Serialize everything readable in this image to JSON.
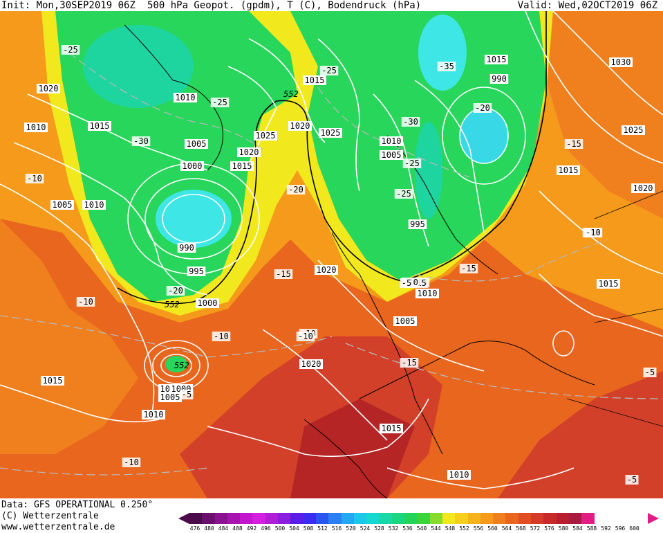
{
  "header": {
    "init": "Init: Mon,30SEP2019 06Z",
    "title": "500 hPa Geopot. (gpdm), T (C), Bodendruck (hPa)",
    "valid": "Valid: Wed,02OCT2019 06Z"
  },
  "footer": {
    "source": "Data: GFS OPERATIONAL 0.250°",
    "copyright": "(C) Wetterzentrale",
    "url": "www.wetterzentrale.de"
  },
  "colors": {
    "green": "#27d65a",
    "light_green": "#6ee06a",
    "cyan": "#3fe6e6",
    "teal": "#1ed5a0",
    "yellow": "#f2e81e",
    "orange": "#f59a1a",
    "dark_orange": "#e8661e",
    "red": "#d3402a",
    "dark_red": "#b52525"
  },
  "scale": {
    "ticks": [
      "476",
      "480",
      "484",
      "488",
      "492",
      "496",
      "500",
      "504",
      "508",
      "512",
      "516",
      "520",
      "524",
      "528",
      "532",
      "536",
      "540",
      "544",
      "548",
      "552",
      "556",
      "560",
      "564",
      "568",
      "572",
      "576",
      "580",
      "584",
      "588",
      "592",
      "596",
      "600"
    ],
    "colors": [
      "#4b0a4a",
      "#6a0f6e",
      "#8a128f",
      "#a814b0",
      "#c316cf",
      "#d41ee0",
      "#b01ed8",
      "#8a1ee0",
      "#5a1ee8",
      "#3a2cf0",
      "#2a55f2",
      "#2a80f2",
      "#21a8f0",
      "#1ac8e8",
      "#15d8d0",
      "#18d8a8",
      "#1ad680",
      "#22d45a",
      "#3bd43a",
      "#8ada2c",
      "#f2e81e",
      "#f5cf1a",
      "#f5b21a",
      "#f59a1a",
      "#f0801e",
      "#e8661e",
      "#e04e22",
      "#d63a28",
      "#c82a2a",
      "#b81e2e",
      "#a81a40",
      "#e21e86"
    ]
  },
  "isobars": [
    "1020",
    "1010",
    "1015",
    "1005",
    "1010",
    "1010",
    "1005",
    "1000",
    "990",
    "995",
    "1000",
    "1025",
    "1020",
    "1015",
    "1020",
    "1025",
    "1015",
    "1010",
    "1005",
    "995",
    "990",
    "1030",
    "1025",
    "1015",
    "1020",
    "1015",
    "1020",
    "1010",
    "1005",
    "1010",
    "1020",
    "1015",
    "1010",
    "1015",
    "1005",
    "1000",
    "1010",
    "1015"
  ],
  "temperatures": [
    "-25",
    "-25",
    "-30",
    "-10",
    "-25",
    "-20",
    "-20",
    "-10",
    "-10",
    "-15",
    "-20",
    "-10",
    "-15",
    "-10",
    "-5",
    "-5",
    "-35",
    "-30",
    "-25",
    "-25",
    "-20",
    "-15",
    "-15",
    "-15",
    "-20",
    "-10",
    "-5",
    "-5",
    "-10",
    "-10"
  ],
  "contour_label": "552"
}
